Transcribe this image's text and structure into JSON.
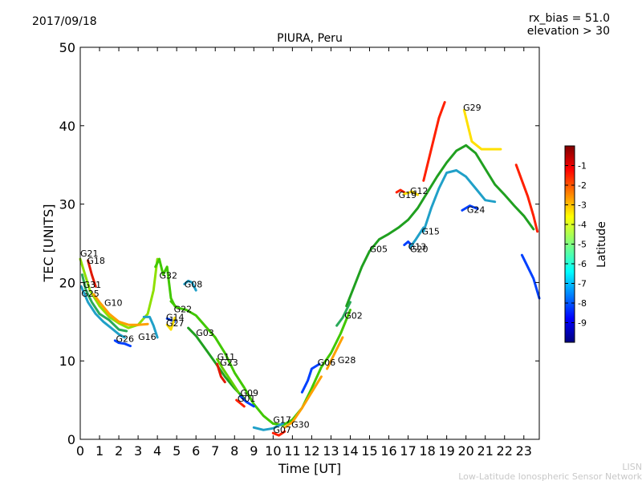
{
  "header": {
    "date": "2017/09/18",
    "rx_bias": "rx_bias = 51.0",
    "elevation": "elevation > 30"
  },
  "footer": {
    "line1": "LISN",
    "line2": "Low-Latitude Ionospheric Sensor Network"
  },
  "colorbar": {
    "label": "Latitude",
    "ticks": [
      "-1",
      "-2",
      "-3",
      "-4",
      "-5",
      "-6",
      "-7",
      "-8",
      "-9"
    ],
    "range": [
      -10,
      0
    ],
    "colormap": "jet"
  },
  "chart_data": {
    "type": "line",
    "title": "PIURA, Peru",
    "xlabel": "Time [UT]",
    "ylabel": "TEC [UNITS]",
    "xlim": [
      0,
      23.8
    ],
    "ylim": [
      0,
      50
    ],
    "xticks": [
      "0",
      "1",
      "2",
      "3",
      "4",
      "5",
      "6",
      "7",
      "8",
      "9",
      "10",
      "11",
      "12",
      "13",
      "14",
      "15",
      "16",
      "17",
      "18",
      "19",
      "20",
      "21",
      "22",
      "23"
    ],
    "yticks": [
      "0",
      "10",
      "20",
      "30",
      "40",
      "50"
    ],
    "grid": false,
    "series": [
      {
        "name": "G21",
        "color": "#8fe000",
        "points": [
          [
            0,
            23
          ],
          [
            0.5,
            19
          ],
          [
            1,
            17
          ],
          [
            1.5,
            15.6
          ],
          [
            2,
            14.8
          ],
          [
            2.5,
            14.2
          ],
          [
            3,
            14.6
          ],
          [
            3.5,
            16
          ],
          [
            3.8,
            19
          ],
          [
            4,
            23
          ]
        ]
      },
      {
        "name": "G18",
        "color": "#e01800",
        "points": [
          [
            0.4,
            22.8
          ],
          [
            0.6,
            21
          ],
          [
            0.8,
            19.5
          ]
        ]
      },
      {
        "name": "G31",
        "color": "#2aaa5a",
        "points": [
          [
            0.1,
            21
          ],
          [
            0.3,
            19
          ],
          [
            0.6,
            17.5
          ],
          [
            1,
            16
          ],
          [
            1.5,
            15.2
          ],
          [
            2,
            14
          ],
          [
            2.4,
            13.8
          ]
        ]
      },
      {
        "name": "G25",
        "color": "#20a0c8",
        "points": [
          [
            0.05,
            19.5
          ],
          [
            0.4,
            17.5
          ],
          [
            0.8,
            16
          ],
          [
            1.2,
            15
          ],
          [
            1.6,
            14.2
          ],
          [
            2,
            13.4
          ],
          [
            2.3,
            13
          ]
        ]
      },
      {
        "name": "G10",
        "color": "#ffa000",
        "points": [
          [
            0.7,
            18.5
          ],
          [
            1,
            17.5
          ],
          [
            1.5,
            16
          ],
          [
            2,
            15
          ],
          [
            2.5,
            14.6
          ],
          [
            3,
            14.6
          ],
          [
            3.5,
            14.7
          ]
        ]
      },
      {
        "name": "G26",
        "color": "#0040ff",
        "points": [
          [
            1.8,
            12.6
          ],
          [
            2,
            12.3
          ],
          [
            2.3,
            12.2
          ],
          [
            2.6,
            11.9
          ]
        ]
      },
      {
        "name": "G16",
        "color": "#20a0c8",
        "points": [
          [
            3.3,
            15.6
          ],
          [
            3.6,
            15.6
          ],
          [
            3.8,
            14.5
          ],
          [
            4,
            13
          ]
        ]
      },
      {
        "name": "G32",
        "color": "#40c800",
        "points": [
          [
            3.9,
            22
          ],
          [
            4.1,
            23
          ],
          [
            4.3,
            21
          ],
          [
            4.5,
            22
          ],
          [
            4.7,
            18
          ],
          [
            4.9,
            17
          ]
        ]
      },
      {
        "name": "G08",
        "color": "#20a0c8",
        "points": [
          [
            5.4,
            19.8
          ],
          [
            5.6,
            20.2
          ],
          [
            5.8,
            20
          ],
          [
            6,
            19
          ]
        ]
      },
      {
        "name": "G22",
        "color": "#40c800",
        "points": [
          [
            4.7,
            17.6
          ],
          [
            5,
            16.8
          ],
          [
            5.5,
            16.5
          ],
          [
            6,
            15.8
          ],
          [
            6.5,
            14.4
          ],
          [
            7,
            13
          ],
          [
            7.5,
            11
          ],
          [
            8,
            8.5
          ],
          [
            8.5,
            6.6
          ],
          [
            9,
            4.5
          ],
          [
            9.5,
            3
          ],
          [
            10,
            2
          ],
          [
            10.5,
            1.8
          ],
          [
            11,
            2.5
          ],
          [
            11.5,
            4
          ],
          [
            12,
            6.5
          ],
          [
            12.5,
            9.2
          ],
          [
            13,
            11
          ],
          [
            13.5,
            13.5
          ],
          [
            14,
            16.5
          ]
        ]
      },
      {
        "name": "G14",
        "color": "#0040ff",
        "points": [
          [
            4.5,
            15.4
          ],
          [
            4.7,
            15.2
          ],
          [
            4.9,
            15
          ]
        ]
      },
      {
        "name": "G27",
        "color": "#ffe000",
        "points": [
          [
            4.5,
            14.6
          ],
          [
            4.7,
            14
          ],
          [
            4.9,
            15.5
          ]
        ]
      },
      {
        "name": "G03",
        "color": "#20a020",
        "points": [
          [
            5.6,
            14.2
          ],
          [
            6,
            13.2
          ],
          [
            6.5,
            11.5
          ],
          [
            7,
            9.8
          ],
          [
            7.5,
            8
          ],
          [
            8,
            6.5
          ],
          [
            8.5,
            5.2
          ]
        ]
      },
      {
        "name": "G11",
        "color": "#60d000",
        "points": [
          [
            7.1,
            10.2
          ],
          [
            7.4,
            9
          ],
          [
            7.8,
            7.5
          ],
          [
            8.2,
            6
          ]
        ]
      },
      {
        "name": "G23",
        "color": "#e01800",
        "points": [
          [
            7.1,
            9.6
          ],
          [
            7.3,
            8
          ],
          [
            7.5,
            7.3
          ]
        ]
      },
      {
        "name": "G09",
        "color": "#0040ff",
        "points": [
          [
            8.3,
            5.5
          ],
          [
            8.6,
            4.8
          ],
          [
            9,
            4.2
          ]
        ]
      },
      {
        "name": "G01",
        "color": "#ff2000",
        "points": [
          [
            8.1,
            5
          ],
          [
            8.3,
            4.6
          ],
          [
            8.5,
            4.2
          ]
        ]
      },
      {
        "name": "G17",
        "color": "#20a0c8",
        "points": [
          [
            9,
            1.5
          ],
          [
            9.5,
            1.2
          ],
          [
            10,
            1.4
          ],
          [
            10.5,
            2
          ]
        ]
      },
      {
        "name": "G07",
        "color": "#ff2000",
        "points": [
          [
            10,
            0.8
          ],
          [
            10.3,
            0.5
          ],
          [
            10.6,
            1
          ]
        ]
      },
      {
        "name": "G30",
        "color": "#ffa000",
        "points": [
          [
            10.6,
            1.5
          ],
          [
            11,
            2.2
          ],
          [
            11.5,
            4
          ],
          [
            12,
            6
          ],
          [
            12.5,
            8
          ]
        ]
      },
      {
        "name": "G06",
        "color": "#0040ff",
        "points": [
          [
            11.5,
            6
          ],
          [
            11.8,
            7.5
          ],
          [
            12,
            9
          ],
          [
            12.4,
            9.6
          ]
        ]
      },
      {
        "name": "G28",
        "color": "#ffa000",
        "points": [
          [
            12.8,
            9
          ],
          [
            13.2,
            11
          ],
          [
            13.6,
            13
          ]
        ]
      },
      {
        "name": "G02",
        "color": "#2aaa5a",
        "points": [
          [
            13.3,
            14.5
          ],
          [
            13.6,
            15.5
          ],
          [
            14,
            17.5
          ]
        ]
      },
      {
        "name": "G05",
        "color": "#20a020",
        "points": [
          [
            13.8,
            17
          ],
          [
            14.2,
            19.5
          ],
          [
            14.6,
            22
          ],
          [
            15,
            24
          ],
          [
            15.5,
            25.5
          ],
          [
            16,
            26.2
          ],
          [
            16.5,
            27
          ],
          [
            17,
            28
          ],
          [
            17.5,
            29.5
          ],
          [
            18,
            31.5
          ],
          [
            18.5,
            33.5
          ],
          [
            19,
            35.3
          ],
          [
            19.5,
            36.8
          ],
          [
            20,
            37.5
          ],
          [
            20.5,
            36.5
          ],
          [
            21,
            34.5
          ],
          [
            21.5,
            32.5
          ],
          [
            22,
            31.2
          ],
          [
            22.5,
            29.8
          ],
          [
            23,
            28.5
          ],
          [
            23.5,
            26.8
          ]
        ]
      },
      {
        "name": "G19",
        "color": "#ff2000",
        "points": [
          [
            16.4,
            31.5
          ],
          [
            16.6,
            31.8
          ],
          [
            16.8,
            31.5
          ]
        ]
      },
      {
        "name": "G12",
        "color": "#ffe000",
        "points": [
          [
            16.8,
            31.3
          ],
          [
            17.2,
            31.6
          ],
          [
            17.5,
            31.2
          ]
        ]
      },
      {
        "name": "G13",
        "color": "#0040ff",
        "points": [
          [
            16.8,
            24.8
          ],
          [
            17,
            25.2
          ],
          [
            17.2,
            24.7
          ]
        ]
      },
      {
        "name": "G20",
        "color": "#20a0c8",
        "points": [
          [
            17.1,
            24.5
          ],
          [
            17.4,
            25.5
          ],
          [
            17.8,
            27
          ]
        ]
      },
      {
        "name": "G15",
        "color": "#20a0c8",
        "points": [
          [
            17.8,
            26.5
          ],
          [
            18.2,
            29.5
          ],
          [
            18.6,
            32
          ],
          [
            19,
            34
          ],
          [
            19.5,
            34.3
          ],
          [
            20,
            33.5
          ],
          [
            20.5,
            32
          ],
          [
            21,
            30.5
          ],
          [
            21.5,
            30.3
          ]
        ]
      },
      {
        "name": "G29",
        "color": "#ff2000",
        "points": [
          [
            17.8,
            33
          ],
          [
            18.2,
            37
          ],
          [
            18.6,
            41
          ],
          [
            18.9,
            43
          ]
        ]
      },
      {
        "name": "G24",
        "color": "#0040ff",
        "points": [
          [
            19.8,
            29.2
          ],
          [
            20.2,
            29.8
          ],
          [
            20.6,
            29.4
          ]
        ]
      },
      {
        "name": "G29b",
        "color": "#ffe000",
        "points": [
          [
            19.9,
            42
          ],
          [
            20.3,
            38
          ],
          [
            20.8,
            37
          ],
          [
            21.3,
            37
          ],
          [
            21.8,
            37
          ]
        ]
      },
      {
        "name": "G29c",
        "color": "#ff2000",
        "points": [
          [
            22.6,
            35
          ],
          [
            22.9,
            33
          ],
          [
            23.2,
            31
          ],
          [
            23.5,
            28.5
          ],
          [
            23.7,
            26.5
          ]
        ]
      },
      {
        "name": "G24b",
        "color": "#0040ff",
        "points": [
          [
            22.9,
            23.5
          ],
          [
            23.2,
            22
          ],
          [
            23.5,
            20.5
          ],
          [
            23.8,
            18
          ]
        ]
      }
    ],
    "labels": [
      {
        "text": "G21",
        "x": 0.0,
        "y": 23.3
      },
      {
        "text": "G18",
        "x": 0.35,
        "y": 22.4
      },
      {
        "text": "G31",
        "x": 0.15,
        "y": 19.3
      },
      {
        "text": "G25",
        "x": 0.05,
        "y": 18.2
      },
      {
        "text": "G10",
        "x": 1.25,
        "y": 17.0
      },
      {
        "text": "G26",
        "x": 1.85,
        "y": 12.4
      },
      {
        "text": "G16",
        "x": 3.0,
        "y": 12.7
      },
      {
        "text": "G32",
        "x": 4.1,
        "y": 20.5
      },
      {
        "text": "G08",
        "x": 5.4,
        "y": 19.4
      },
      {
        "text": "G22",
        "x": 4.85,
        "y": 16.2
      },
      {
        "text": "G14",
        "x": 4.45,
        "y": 15.2
      },
      {
        "text": "G27",
        "x": 4.45,
        "y": 14.4
      },
      {
        "text": "G03",
        "x": 6.0,
        "y": 13.2
      },
      {
        "text": "G11",
        "x": 7.1,
        "y": 10.1
      },
      {
        "text": "G23",
        "x": 7.25,
        "y": 9.4
      },
      {
        "text": "G09",
        "x": 8.3,
        "y": 5.5
      },
      {
        "text": "G01",
        "x": 8.15,
        "y": 4.8
      },
      {
        "text": "G17",
        "x": 10.0,
        "y": 2.1
      },
      {
        "text": "G07",
        "x": 10.0,
        "y": 0.8
      },
      {
        "text": "G30",
        "x": 10.95,
        "y": 1.5
      },
      {
        "text": "G06",
        "x": 12.3,
        "y": 9.4
      },
      {
        "text": "G28",
        "x": 13.35,
        "y": 9.7
      },
      {
        "text": "G02",
        "x": 13.7,
        "y": 15.4
      },
      {
        "text": "G05",
        "x": 15.0,
        "y": 23.9
      },
      {
        "text": "G19",
        "x": 16.5,
        "y": 30.8
      },
      {
        "text": "G12",
        "x": 17.1,
        "y": 31.3
      },
      {
        "text": "G13",
        "x": 17.0,
        "y": 24.2
      },
      {
        "text": "G20",
        "x": 17.1,
        "y": 23.9
      },
      {
        "text": "G15",
        "x": 17.7,
        "y": 26.1
      },
      {
        "text": "G29",
        "x": 19.85,
        "y": 41.9
      },
      {
        "text": "G24",
        "x": 20.05,
        "y": 28.9
      }
    ]
  }
}
